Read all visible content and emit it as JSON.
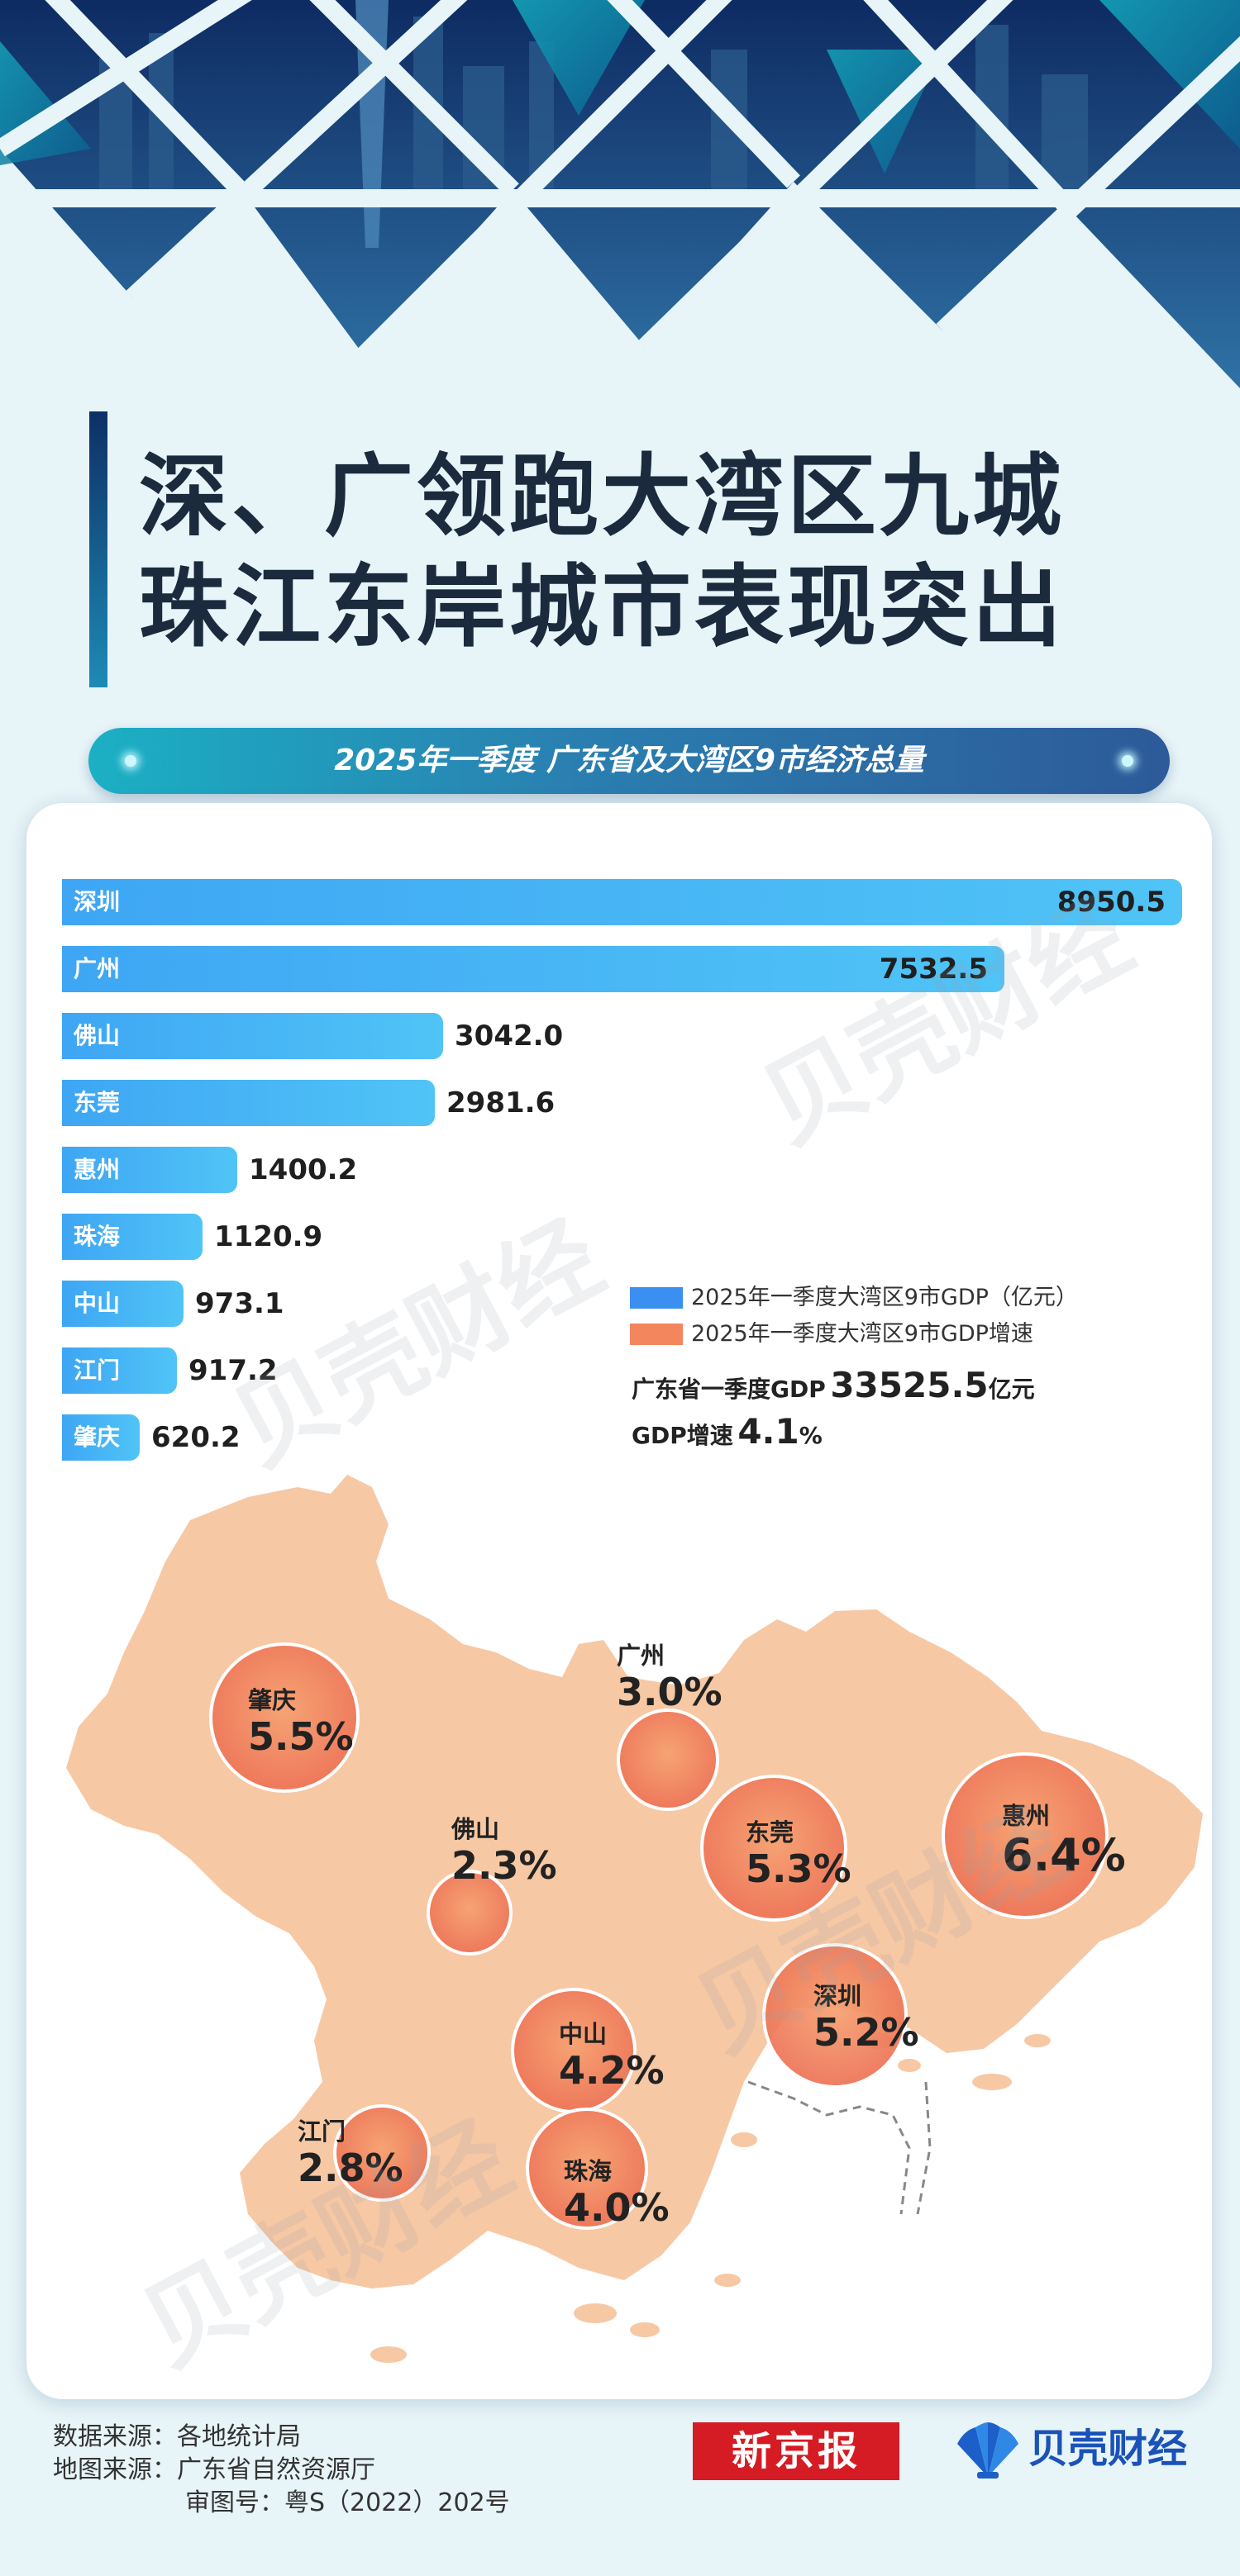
{
  "title": {
    "line1": "深、广领跑大湾区九城",
    "line2": "珠江东岸城市表现突出"
  },
  "subtitle": "2025年一季度 广东省及大湾区9市经济总量",
  "colors": {
    "gdp_bar": "#43aef5",
    "growth_bubble": "#f08a60",
    "map_fill": "#f7c8a4",
    "accent_dark": "#1d3b6e"
  },
  "legend": [
    {
      "label": "2025年一季度大湾区9市GDP（亿元）",
      "color": "#3b8ff0"
    },
    {
      "label": "2025年一季度大湾区9市GDP增速",
      "color": "#f4865e"
    }
  ],
  "province": {
    "gdp_label": "广东省一季度GDP",
    "gdp_value": "33525.5",
    "gdp_unit": "亿元",
    "growth_label": "GDP增速",
    "growth_value": "4.1",
    "growth_unit": "%"
  },
  "chart_data": [
    {
      "type": "bar",
      "categories": [
        "深圳",
        "广州",
        "佛山",
        "东莞",
        "惠州",
        "珠海",
        "中山",
        "江门",
        "肇庆"
      ],
      "values": [
        8950.5,
        7532.5,
        3042.0,
        2981.6,
        1400.2,
        1120.9,
        973.1,
        917.2,
        620.2
      ],
      "value_labels": [
        "8950.5",
        "7532.5",
        "3042.0",
        "2981.6",
        "1400.2",
        "1120.9",
        "973.1",
        "917.2",
        "620.2"
      ],
      "orientation": "horizontal"
    },
    {
      "type": "scatter",
      "description_of_marks": "bubble map",
      "cities": [
        "肇庆",
        "广州",
        "佛山",
        "东莞",
        "惠州",
        "深圳",
        "中山",
        "江门",
        "珠海"
      ],
      "values": [
        5.5,
        3.0,
        2.3,
        5.3,
        6.4,
        5.2,
        4.2,
        2.8,
        4.0
      ],
      "value_labels": [
        "5.5%",
        "3.0%",
        "2.3%",
        "5.3%",
        "6.4%",
        "5.2%",
        "4.2%",
        "2.8%",
        "4.0%"
      ]
    }
  ],
  "watermark": "贝壳财经",
  "footer": {
    "data_source": "数据来源：各地统计局",
    "map_source": "地图来源：广东省自然资源厅",
    "map_number": "审图号：粤S（2022）202号"
  },
  "logos": {
    "xjb": "新京报",
    "beike": "贝壳财经"
  }
}
